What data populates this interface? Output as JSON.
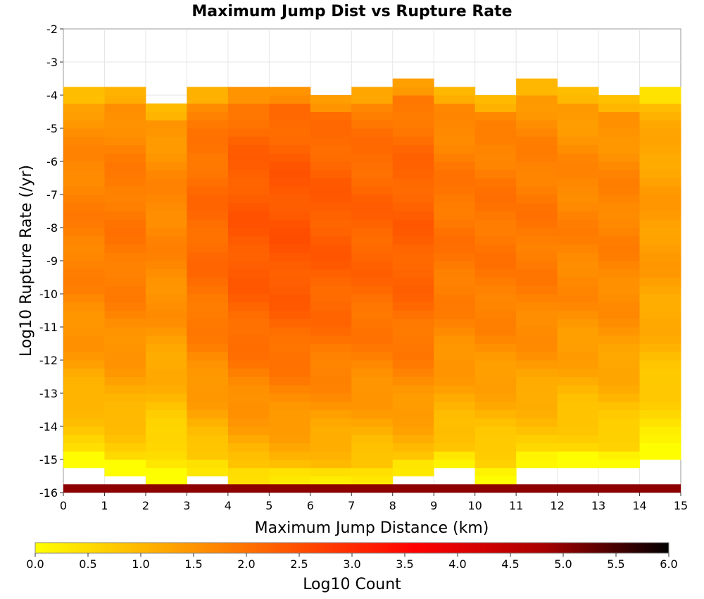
{
  "chart_data": {
    "type": "heatmap",
    "title": "Maximum Jump Dist vs Rupture Rate",
    "xlabel": "Maximum Jump Distance (km)",
    "ylabel": "Log10 Rupture Rate (/yr)",
    "xlim": [
      0,
      15
    ],
    "ylim": [
      -16,
      -2
    ],
    "x_ticks": [
      "0",
      "1",
      "2",
      "3",
      "4",
      "5",
      "6",
      "7",
      "8",
      "9",
      "10",
      "11",
      "12",
      "13",
      "14",
      "15"
    ],
    "y_ticks": [
      "-2",
      "-3",
      "-4",
      "-5",
      "-6",
      "-7",
      "-8",
      "-9",
      "-10",
      "-11",
      "-12",
      "-13",
      "-14",
      "-15",
      "-16"
    ],
    "x_bin_width": 1,
    "y_bin_height": 0.25,
    "colorbar": {
      "label": "Log10 Count",
      "range": [
        0,
        6
      ],
      "ticks": [
        "0.0",
        "0.5",
        "1.0",
        "1.5",
        "2.0",
        "2.5",
        "3.0",
        "3.5",
        "4.0",
        "4.5",
        "5.0",
        "5.5",
        "6.0"
      ],
      "colormap": [
        "#ffff00",
        "#ffaa00",
        "#ff5500",
        "#ff0000",
        "#aa0000",
        "#000000"
      ]
    },
    "columns": [
      {
        "x": 0,
        "y_top": -3.75,
        "y_bottom": -15.25,
        "peak": 1.8
      },
      {
        "x": 1,
        "y_top": -3.75,
        "y_bottom": -15.5,
        "peak": 1.9
      },
      {
        "x": 2,
        "y_top": -4.25,
        "y_bottom": -15.75,
        "peak": 1.7
      },
      {
        "x": 3,
        "y_top": -3.75,
        "y_bottom": -15.5,
        "peak": 2.1
      },
      {
        "x": 4,
        "y_top": -3.75,
        "y_bottom": -15.75,
        "peak": 2.35
      },
      {
        "x": 5,
        "y_top": -3.75,
        "y_bottom": -15.75,
        "peak": 2.4
      },
      {
        "x": 6,
        "y_top": -4.0,
        "y_bottom": -15.75,
        "peak": 2.3
      },
      {
        "x": 7,
        "y_top": -3.75,
        "y_bottom": -15.75,
        "peak": 2.2
      },
      {
        "x": 8,
        "y_top": -3.5,
        "y_bottom": -15.5,
        "peak": 2.25
      },
      {
        "x": 9,
        "y_top": -3.75,
        "y_bottom": -15.25,
        "peak": 1.95
      },
      {
        "x": 10,
        "y_top": -4.0,
        "y_bottom": -15.75,
        "peak": 1.95
      },
      {
        "x": 11,
        "y_top": -3.5,
        "y_bottom": -15.25,
        "peak": 1.9
      },
      {
        "x": 12,
        "y_top": -3.75,
        "y_bottom": -15.25,
        "peak": 1.75
      },
      {
        "x": 13,
        "y_top": -4.0,
        "y_bottom": -15.25,
        "peak": 1.75
      },
      {
        "x": 14,
        "y_top": -3.75,
        "y_bottom": -15.0,
        "peak": 1.4
      }
    ],
    "bottom_row": {
      "y": -16,
      "value": 5.0
    }
  }
}
